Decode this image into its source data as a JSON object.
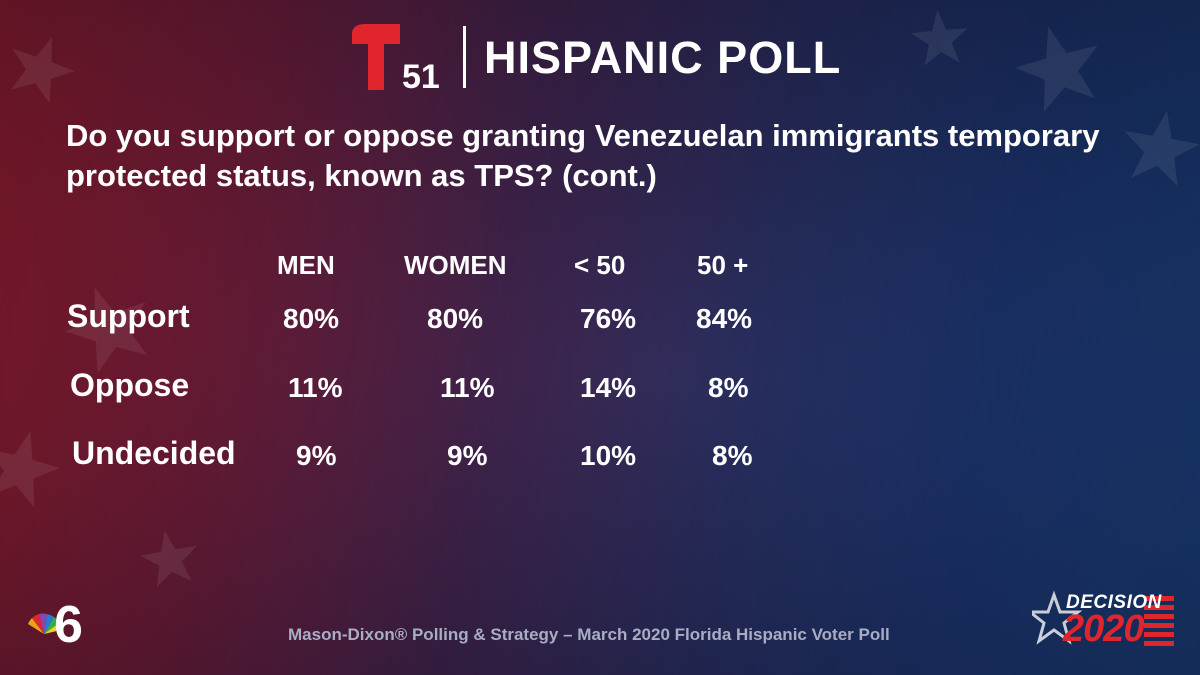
{
  "header": {
    "channel_number": "51",
    "poll_title": "HISPANIC POLL"
  },
  "question": "Do you support or oppose granting Venezuelan immigrants temporary protected status, known as TPS? (cont.)",
  "chart_data": {
    "type": "table",
    "columns": [
      "MEN",
      "WOMEN",
      "< 50",
      "50 +"
    ],
    "rows": [
      {
        "label": "Support",
        "values": [
          "80%",
          "80%",
          "76%",
          "84%"
        ]
      },
      {
        "label": "Oppose",
        "values": [
          "11%",
          "11%",
          "14%",
          "8%"
        ]
      },
      {
        "label": "Undecided",
        "values": [
          "9%",
          "9%",
          "10%",
          "8%"
        ]
      }
    ]
  },
  "footer": {
    "source": "Mason-Dixon® Polling & Strategy – March 2020 Florida Hispanic Voter Poll"
  },
  "branding": {
    "station_number": "6",
    "decision_word": "DECISION",
    "decision_year": "2020",
    "accent_red": "#e0252c",
    "navy": "#1c3a78"
  }
}
